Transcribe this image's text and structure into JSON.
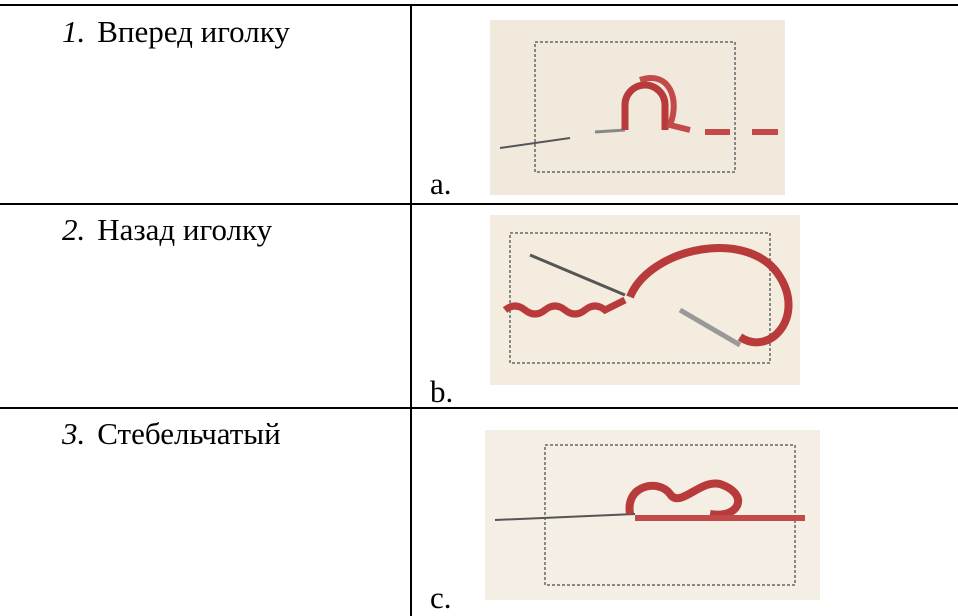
{
  "table": {
    "rows": [
      {
        "number": "1.",
        "label": "Вперед иголку",
        "letter": "a."
      },
      {
        "number": "2.",
        "label": "Назад иголку",
        "letter": "b."
      },
      {
        "number": "3.",
        "label": "Стебельчатый",
        "letter": "c."
      }
    ]
  }
}
